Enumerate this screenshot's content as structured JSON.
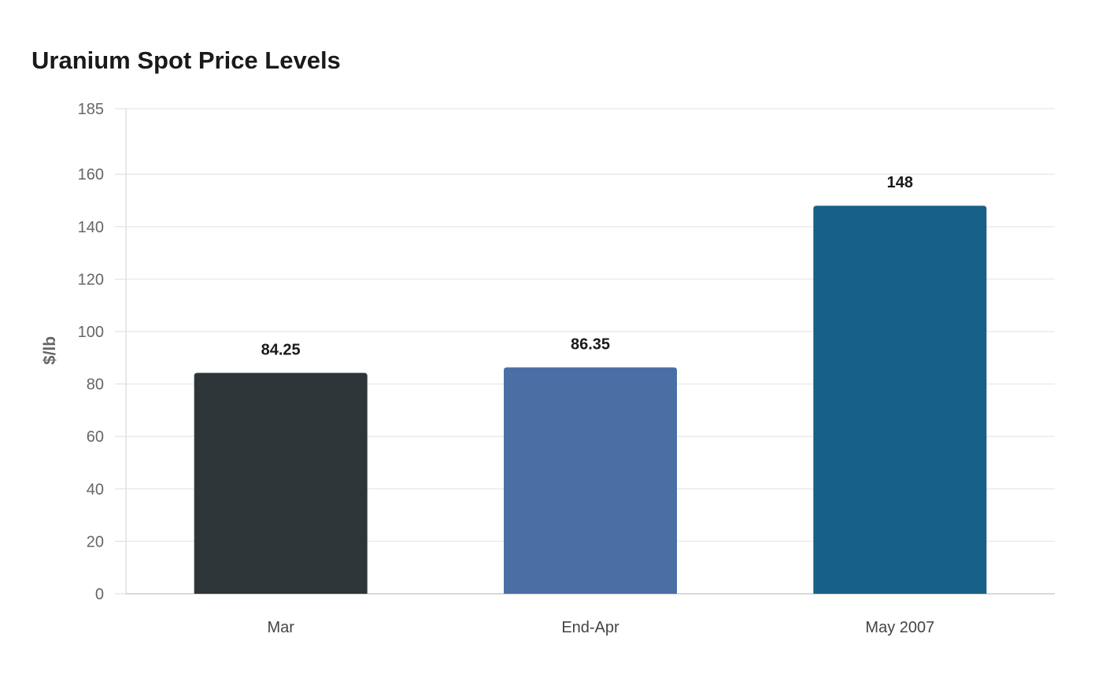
{
  "chart_data": {
    "type": "bar",
    "title": "Uranium Spot Price Levels",
    "xlabel": "",
    "ylabel": "$/lb",
    "categories": [
      "Mar",
      "End-Apr",
      "May 2007"
    ],
    "values": [
      84.25,
      86.35,
      148
    ],
    "value_labels": [
      "84.25",
      "86.35",
      "148"
    ],
    "colors": [
      "#2e3538",
      "#4a6fa5",
      "#176087"
    ],
    "ylim": [
      0,
      185
    ],
    "yticks": [
      0,
      20,
      40,
      60,
      80,
      100,
      120,
      140,
      160,
      185
    ],
    "grid": true,
    "legend": "none"
  }
}
